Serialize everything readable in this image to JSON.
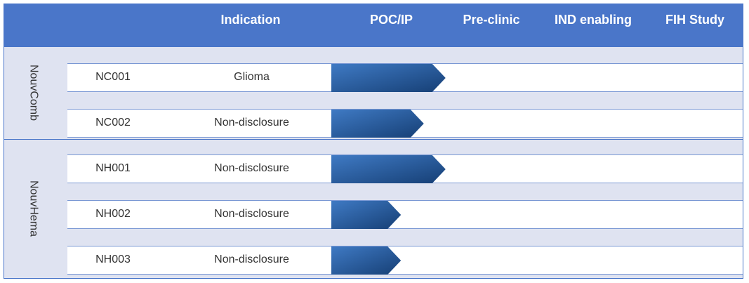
{
  "columns": [
    "",
    "Indication",
    "POC/IP",
    "Pre-clinic",
    "IND enabling",
    "FIH Study"
  ],
  "colors": {
    "header": "#4a76c9",
    "band": "#dfe3f1",
    "bar_light": "#3f7ac4",
    "bar_dark": "#163f75"
  },
  "groups": [
    {
      "label": "NouvComb"
    },
    {
      "label": "NouvHema"
    }
  ],
  "rows": [
    {
      "name": "NC001",
      "indication": "Glioma"
    },
    {
      "name": "NC002",
      "indication": "Non-disclosure"
    },
    {
      "name": "NH001",
      "indication": "Non-disclosure"
    },
    {
      "name": "NH002",
      "indication": "Non-disclosure"
    },
    {
      "name": "NH003",
      "indication": "Non-disclosure"
    }
  ],
  "chart_data": {
    "type": "bar",
    "orientation": "horizontal",
    "stages": [
      "POC/IP",
      "Pre-clinic",
      "IND enabling",
      "FIH Study"
    ],
    "categories": [
      "NC001",
      "NC002",
      "NH001",
      "NH002",
      "NH003"
    ],
    "groups": [
      {
        "name": "NouvComb",
        "members": [
          "NC001",
          "NC002"
        ]
      },
      {
        "name": "NouvHema",
        "members": [
          "NH001",
          "NH002",
          "NH003"
        ]
      }
    ],
    "values": [
      1.05,
      0.85,
      1.05,
      0.64,
      0.64
    ],
    "xlim": [
      0,
      4
    ]
  }
}
